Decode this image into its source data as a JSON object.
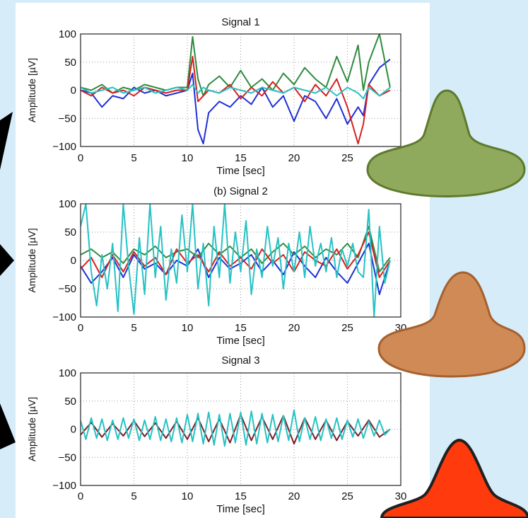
{
  "chart_data": [
    {
      "type": "line",
      "title": "Signal 1",
      "xlabel": "Time [sec]",
      "ylabel": "Amplitude [µV]",
      "xlim": [
        0,
        30
      ],
      "ylim": [
        -100,
        100
      ],
      "x_ticks": [
        "0",
        "5",
        "10",
        "15",
        "20",
        "25"
      ],
      "y_ticks": [
        "100",
        "50",
        "0",
        "−50",
        "−100"
      ],
      "grid": true,
      "series": [
        {
          "color": "#1f2fd6",
          "x": [
            0,
            1,
            2,
            3,
            4,
            5,
            6,
            7,
            8,
            9,
            10,
            10.5,
            11,
            11.5,
            12,
            13,
            14,
            15,
            16,
            17,
            18,
            19,
            20,
            21,
            22,
            23,
            24,
            25,
            26,
            26.5,
            27,
            28,
            29
          ],
          "values": [
            0,
            -5,
            -30,
            -10,
            -15,
            5,
            -5,
            0,
            -10,
            -5,
            0,
            30,
            -70,
            -95,
            -40,
            -20,
            -30,
            -10,
            -25,
            5,
            -30,
            -10,
            -55,
            -10,
            -20,
            -50,
            -15,
            -60,
            -30,
            -45,
            10,
            40,
            55
          ]
        },
        {
          "color": "#2e8b3e",
          "x": [
            0,
            1,
            2,
            3,
            4,
            5,
            6,
            7,
            8,
            9,
            10,
            10.5,
            11,
            11.5,
            12,
            13,
            14,
            15,
            16,
            17,
            18,
            19,
            20,
            21,
            22,
            23,
            24,
            25,
            26,
            26.5,
            27,
            28,
            29
          ],
          "values": [
            5,
            0,
            10,
            -5,
            5,
            0,
            10,
            5,
            0,
            5,
            5,
            95,
            20,
            -10,
            10,
            25,
            5,
            35,
            5,
            20,
            0,
            30,
            10,
            40,
            20,
            5,
            60,
            15,
            80,
            0,
            50,
            100,
            5
          ]
        },
        {
          "color": "#d62020",
          "x": [
            0,
            1,
            2,
            3,
            4,
            5,
            6,
            7,
            8,
            9,
            10,
            10.5,
            11,
            11.5,
            12,
            13,
            14,
            15,
            16,
            17,
            18,
            19,
            20,
            21,
            22,
            23,
            24,
            25,
            26,
            26.5,
            27,
            28,
            29
          ],
          "values": [
            0,
            -10,
            5,
            -5,
            0,
            -10,
            5,
            0,
            -5,
            0,
            0,
            60,
            -20,
            -10,
            0,
            -5,
            10,
            -15,
            5,
            -10,
            15,
            -5,
            5,
            -20,
            10,
            -10,
            20,
            -30,
            -95,
            -60,
            10,
            -10,
            0
          ]
        },
        {
          "color": "#26c2c4",
          "x": [
            0,
            1,
            2,
            3,
            4,
            5,
            6,
            7,
            8,
            9,
            10,
            10.5,
            11,
            11.5,
            12,
            13,
            14,
            15,
            16,
            17,
            18,
            19,
            20,
            21,
            22,
            23,
            24,
            25,
            26,
            26.5,
            27,
            28,
            29
          ],
          "values": [
            5,
            -5,
            0,
            5,
            -5,
            0,
            5,
            -5,
            0,
            5,
            0,
            10,
            -5,
            5,
            0,
            -5,
            5,
            0,
            -5,
            5,
            0,
            -5,
            5,
            0,
            -5,
            5,
            -10,
            5,
            -5,
            -15,
            5,
            -10,
            5
          ]
        }
      ]
    },
    {
      "type": "line",
      "title": "(b) Signal 2",
      "xlabel": "Time [sec]",
      "ylabel": "Amplitude [µV]",
      "xlim": [
        0,
        30
      ],
      "ylim": [
        -100,
        100
      ],
      "x_ticks": [
        "0",
        "5",
        "10",
        "15",
        "20",
        "25",
        "30"
      ],
      "y_ticks": [
        "100",
        "50",
        "0",
        "−50",
        "−100"
      ],
      "grid": true,
      "series": [
        {
          "color": "#1f2fd6",
          "x": [
            0,
            1,
            2,
            3,
            4,
            5,
            6,
            7,
            8,
            9,
            10,
            11,
            12,
            13,
            14,
            15,
            16,
            17,
            18,
            19,
            20,
            21,
            22,
            23,
            24,
            25,
            26,
            27,
            28,
            29
          ],
          "values": [
            -10,
            -40,
            -20,
            5,
            -30,
            10,
            -15,
            -5,
            -25,
            0,
            -10,
            20,
            -30,
            5,
            -15,
            -5,
            10,
            -20,
            0,
            -25,
            15,
            -10,
            -30,
            5,
            -20,
            -40,
            -5,
            30,
            -60,
            0
          ]
        },
        {
          "color": "#2e8b3e",
          "x": [
            0,
            1,
            2,
            3,
            4,
            5,
            6,
            7,
            8,
            9,
            10,
            11,
            12,
            13,
            14,
            15,
            16,
            17,
            18,
            19,
            20,
            21,
            22,
            23,
            24,
            25,
            26,
            27,
            28,
            29
          ],
          "values": [
            10,
            20,
            5,
            15,
            -5,
            20,
            10,
            25,
            5,
            15,
            20,
            5,
            30,
            10,
            25,
            5,
            20,
            -5,
            15,
            30,
            10,
            25,
            5,
            20,
            10,
            30,
            5,
            60,
            -20,
            5
          ]
        },
        {
          "color": "#d62020",
          "x": [
            0,
            1,
            2,
            3,
            4,
            5,
            6,
            7,
            8,
            9,
            10,
            11,
            12,
            13,
            14,
            15,
            16,
            17,
            18,
            19,
            20,
            21,
            22,
            23,
            24,
            25,
            26,
            27,
            28,
            29
          ],
          "values": [
            -15,
            5,
            -30,
            10,
            -20,
            15,
            -10,
            5,
            -25,
            20,
            -5,
            10,
            -20,
            15,
            -10,
            5,
            -15,
            20,
            -5,
            10,
            -20,
            15,
            0,
            -10,
            20,
            -15,
            10,
            50,
            -30,
            0
          ]
        },
        {
          "color": "#26c2c4",
          "x": [
            0,
            0.5,
            1,
            1.5,
            2,
            2.5,
            3,
            3.5,
            4,
            4.5,
            5,
            5.5,
            6,
            6.5,
            7,
            7.5,
            8,
            8.5,
            9,
            9.5,
            10,
            10.5,
            11,
            11.5,
            12,
            12.5,
            13,
            13.5,
            14,
            14.5,
            15,
            15.5,
            16,
            16.5,
            17,
            17.5,
            18,
            18.5,
            19,
            19.5,
            20,
            20.5,
            21,
            21.5,
            22,
            22.5,
            23,
            23.5,
            24,
            24.5,
            25,
            25.5,
            26,
            26.5,
            27,
            27.5,
            28,
            28.5,
            29
          ],
          "values": [
            60,
            100,
            -20,
            -80,
            10,
            -50,
            30,
            -90,
            100,
            -10,
            -95,
            40,
            -60,
            100,
            -30,
            60,
            -70,
            20,
            -40,
            80,
            -20,
            100,
            -50,
            30,
            -80,
            60,
            -30,
            100,
            -40,
            50,
            -20,
            70,
            -60,
            20,
            -30,
            60,
            -10,
            40,
            -50,
            30,
            -20,
            50,
            -30,
            60,
            -10,
            30,
            -20,
            40,
            -30,
            20,
            -10,
            30,
            -20,
            -30,
            90,
            -100,
            60,
            -40,
            0
          ]
        }
      ]
    },
    {
      "type": "line",
      "title": "Signal 3",
      "xlabel": "Time [sec]",
      "ylabel": "Amplitude [µV]",
      "xlim": [
        0,
        30
      ],
      "ylim": [
        -100,
        100
      ],
      "x_ticks": [
        "0",
        "5",
        "10",
        "15",
        "20",
        "25",
        "30"
      ],
      "y_ticks": [
        "100",
        "50",
        "0",
        "−50",
        "−100"
      ],
      "grid": true,
      "series": [
        {
          "color": "#7a1f2a",
          "x": [
            0,
            1,
            2,
            3,
            4,
            5,
            6,
            7,
            8,
            9,
            10,
            11,
            12,
            13,
            14,
            15,
            16,
            17,
            18,
            19,
            20,
            21,
            22,
            23,
            24,
            25,
            26,
            27,
            28,
            29
          ],
          "values": [
            -10,
            12,
            -14,
            10,
            -12,
            15,
            -13,
            11,
            -16,
            14,
            -18,
            20,
            -22,
            18,
            -24,
            26,
            -20,
            22,
            -18,
            24,
            -26,
            20,
            -18,
            16,
            -20,
            14,
            -12,
            16,
            -14,
            0
          ]
        },
        {
          "color": "#26c2c4",
          "x": [
            0,
            0.5,
            1,
            1.5,
            2,
            2.5,
            3,
            3.5,
            4,
            4.5,
            5,
            5.5,
            6,
            6.5,
            7,
            7.5,
            8,
            8.5,
            9,
            9.5,
            10,
            10.5,
            11,
            11.5,
            12,
            12.5,
            13,
            13.5,
            14,
            14.5,
            15,
            15.5,
            16,
            16.5,
            17,
            17.5,
            18,
            18.5,
            19,
            19.5,
            20,
            20.5,
            21,
            21.5,
            22,
            22.5,
            23,
            23.5,
            24,
            24.5,
            25,
            25.5,
            26,
            26.5,
            27,
            27.5,
            28,
            28.5,
            29
          ],
          "values": [
            15,
            -18,
            20,
            -16,
            18,
            -20,
            16,
            -18,
            20,
            -16,
            18,
            -20,
            16,
            -18,
            22,
            -20,
            18,
            -22,
            20,
            -24,
            26,
            -22,
            28,
            -26,
            30,
            -28,
            26,
            -30,
            28,
            -24,
            30,
            -28,
            32,
            -26,
            28,
            -24,
            26,
            -22,
            24,
            -20,
            34,
            -22,
            20,
            -18,
            22,
            -20,
            18,
            -16,
            20,
            -18,
            16,
            -14,
            18,
            -16,
            14,
            -12,
            16,
            -10,
            0
          ]
        }
      ]
    }
  ],
  "decor": {
    "hat_colors": [
      "#8faa5c",
      "#d08a55",
      "#ff3a0d"
    ],
    "hat_stroke_colors": [
      "#5e7a2c",
      "#a5602f",
      "#202020"
    ],
    "pointer_color": "#000000"
  }
}
